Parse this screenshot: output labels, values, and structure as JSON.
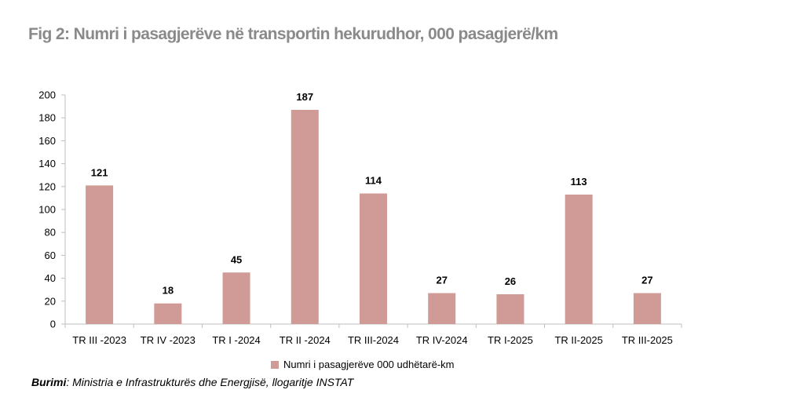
{
  "title": "Fig 2:  Numri i pasagjerëve në transportin hekurudhor, 000 pasagjerë/km",
  "legend_label": "Numri i pasagjerëve 000 udhëtarë-km",
  "source": {
    "lead": "Burimi",
    "text": ": Ministria e Infrastrukturës dhe Energjisë, llogaritje INSTAT"
  },
  "colors": {
    "bar": "#d09a96",
    "axis": "#bfbfbf"
  },
  "chart_data": {
    "type": "bar",
    "categories": [
      "TR III -2023",
      "TR IV -2023",
      "TR I -2024",
      "TR II -2024",
      "TR III-2024",
      "TR IV-2024",
      "TR I-2025",
      "TR II-2025",
      "TR III-2025"
    ],
    "series": [
      {
        "name": "Numri i pasagjerëve 000 udhëtarë-km",
        "values": [
          121,
          18,
          45,
          187,
          114,
          27,
          26,
          113,
          27
        ]
      }
    ],
    "ylim": [
      0,
      200
    ],
    "yticks": [
      0,
      20,
      40,
      60,
      80,
      100,
      120,
      140,
      160,
      180,
      200
    ],
    "data_labels": true,
    "grid": false,
    "legend_position": "bottom"
  }
}
